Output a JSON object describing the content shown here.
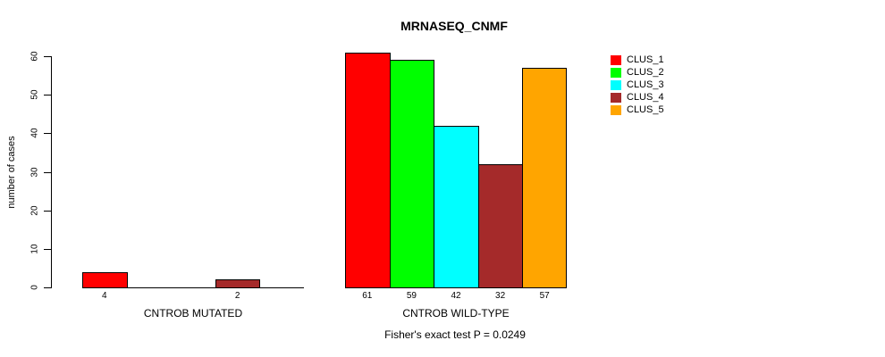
{
  "title": "MRNASEQ_CNMF",
  "footer": "Fisher's exact test P = 0.0249",
  "chart_data": {
    "type": "bar",
    "title": "MRNASEQ_CNMF",
    "xlabel": "",
    "ylabel": "number of cases",
    "ylim": [
      0,
      60
    ],
    "yticks": [
      "0",
      "10",
      "20",
      "30",
      "40",
      "50",
      "60"
    ],
    "grid": false,
    "legend_position": "top-right",
    "series": [
      {
        "name": "CLUS_1",
        "color": "#FF0000"
      },
      {
        "name": "CLUS_2",
        "color": "#00FF00"
      },
      {
        "name": "CLUS_3",
        "color": "#00FFFF"
      },
      {
        "name": "CLUS_4",
        "color": "#A52A2A"
      },
      {
        "name": "CLUS_5",
        "color": "#FFA500"
      }
    ],
    "groups": [
      {
        "label": "CNTROB MUTATED",
        "values": [
          4,
          0,
          0,
          2,
          0
        ],
        "value_labels": [
          "4",
          "",
          "",
          "2",
          ""
        ]
      },
      {
        "label": "CNTROB WILD-TYPE",
        "values": [
          61,
          59,
          42,
          32,
          57
        ],
        "value_labels": [
          "61",
          "59",
          "42",
          "32",
          "57"
        ]
      }
    ],
    "annotation": "Fisher's exact test P = 0.0249"
  }
}
